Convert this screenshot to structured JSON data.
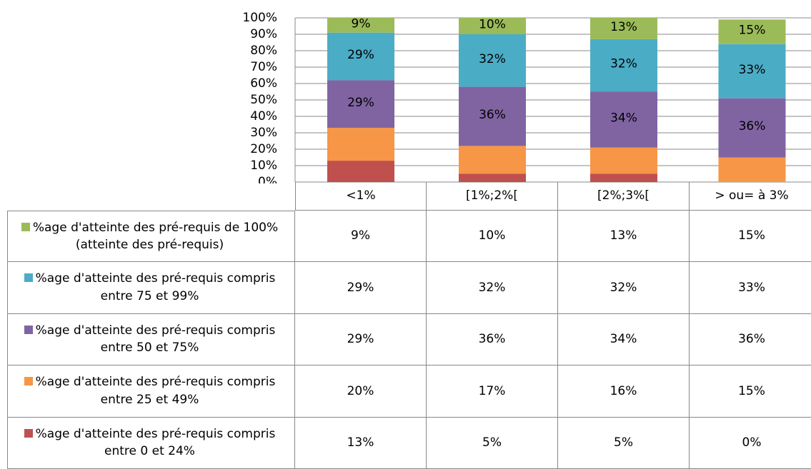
{
  "chart_data": {
    "type": "stacked_bar",
    "categories": [
      "<1%",
      "[1%;2%[",
      "[2%;3%[",
      "> ou= à 3%"
    ],
    "series": [
      {
        "name": "%age d'atteinte des pré-requis de 100% (atteinte des pré-requis)",
        "color": "#9bbb59",
        "values": [
          9,
          10,
          13,
          15
        ],
        "value_labels": [
          "9%",
          "10%",
          "13%",
          "15%"
        ],
        "data_labels": true
      },
      {
        "name": "%age d'atteinte des pré-requis compris entre 75 et 99%",
        "color": "#4bacc6",
        "values": [
          29,
          32,
          32,
          33
        ],
        "value_labels": [
          "29%",
          "32%",
          "32%",
          "33%"
        ],
        "data_labels": true
      },
      {
        "name": "%age d'atteinte des pré-requis compris entre 50 et 75%",
        "color": "#8064a2",
        "values": [
          29,
          36,
          34,
          36
        ],
        "value_labels": [
          "29%",
          "36%",
          "34%",
          "36%"
        ],
        "data_labels": true
      },
      {
        "name": "%age d'atteinte des pré-requis compris entre 25 et 49%",
        "color": "#f79646",
        "values": [
          20,
          17,
          16,
          15
        ],
        "value_labels": [
          "20%",
          "17%",
          "16%",
          "15%"
        ],
        "data_labels": false
      },
      {
        "name": "%age d'atteinte des pré-requis compris entre 0 et 24%",
        "color": "#c0504d",
        "values": [
          13,
          5,
          5,
          0
        ],
        "value_labels": [
          "13%",
          "5%",
          "5%",
          "0%"
        ],
        "data_labels": false
      }
    ],
    "ylim": [
      0,
      100
    ],
    "yticks": [
      {
        "value": 0,
        "label": "0%"
      },
      {
        "value": 10,
        "label": "10%"
      },
      {
        "value": 20,
        "label": "20%"
      },
      {
        "value": 30,
        "label": "30%"
      },
      {
        "value": 40,
        "label": "40%"
      },
      {
        "value": 50,
        "label": "50%"
      },
      {
        "value": 60,
        "label": "60%"
      },
      {
        "value": 70,
        "label": "70%"
      },
      {
        "value": 80,
        "label": "80%"
      },
      {
        "value": 90,
        "label": "90%"
      },
      {
        "value": 100,
        "label": "100%"
      }
    ],
    "grid": true,
    "data_table": true
  }
}
